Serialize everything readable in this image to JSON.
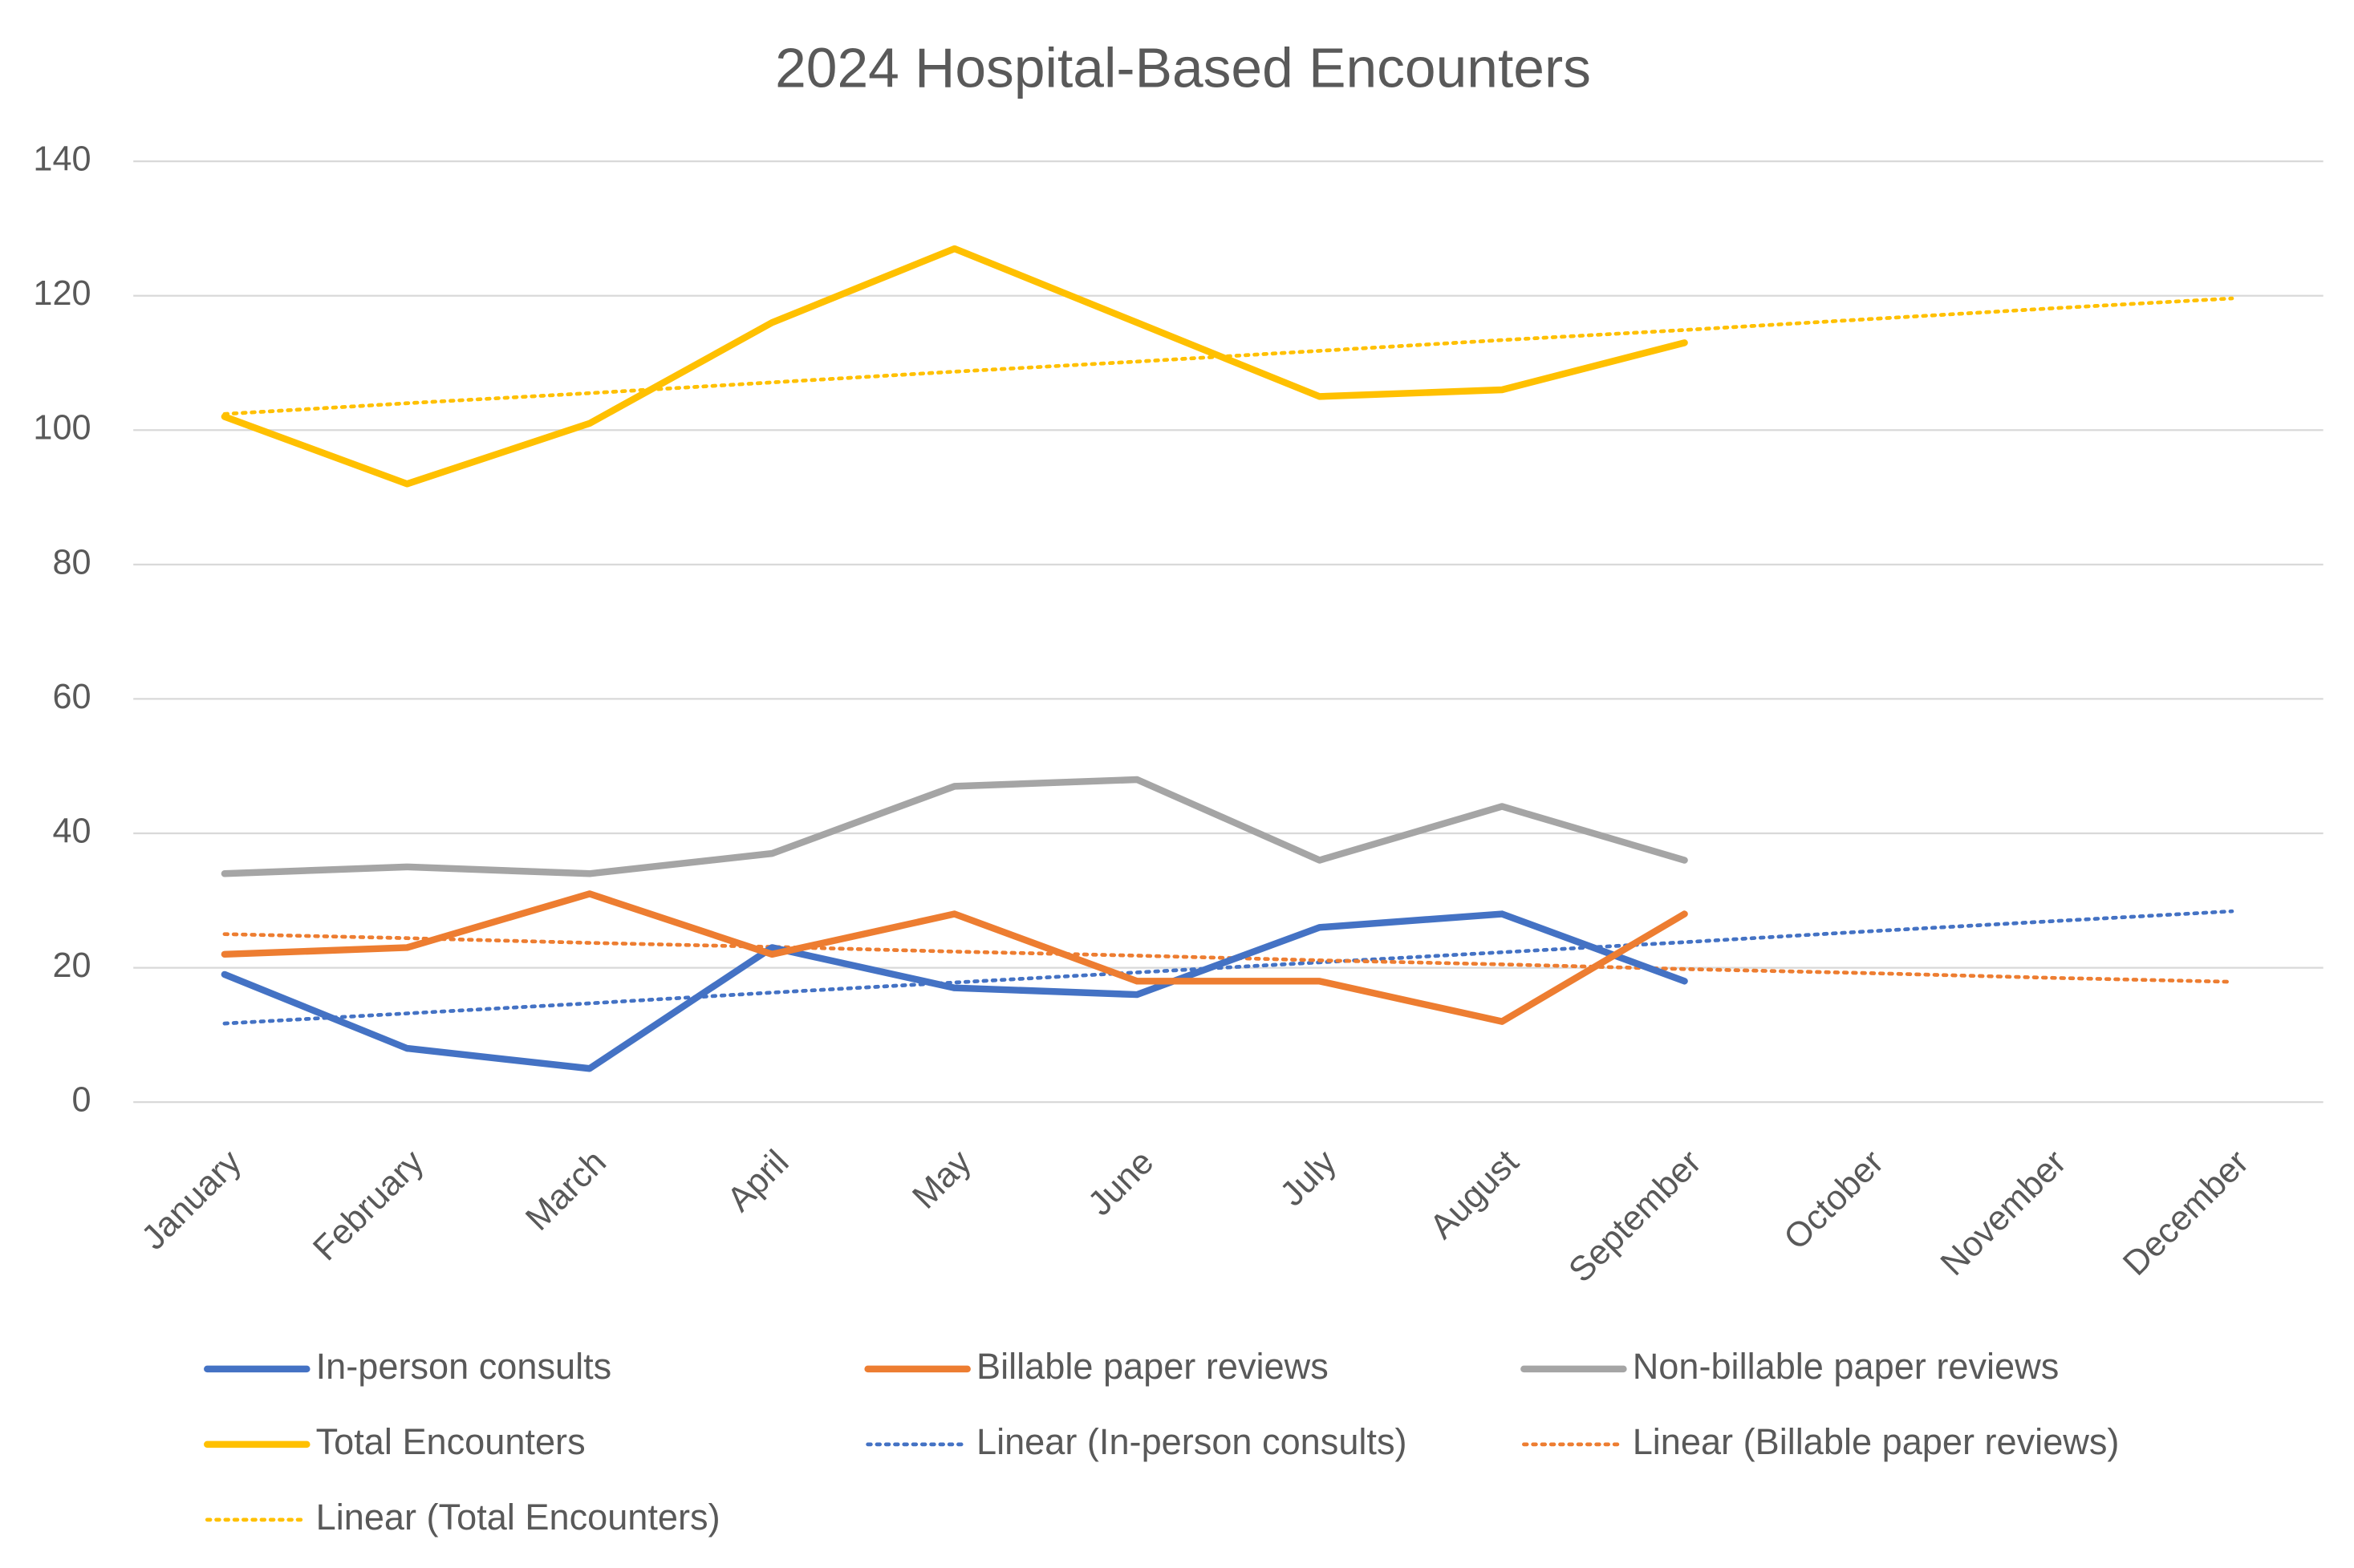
{
  "chart_data": {
    "type": "line",
    "title": "2024 Hospital-Based Encounters",
    "categories": [
      "January",
      "February",
      "March",
      "April",
      "May",
      "June",
      "July",
      "August",
      "September",
      "October",
      "November",
      "December"
    ],
    "ylim": [
      0,
      140
    ],
    "yticks": [
      0,
      20,
      40,
      60,
      80,
      100,
      120,
      140
    ],
    "grid": true,
    "legend": "bottom",
    "series": [
      {
        "name": "In-person consults",
        "color": "#4472c4",
        "dash": "solid",
        "values": [
          19,
          8,
          5,
          23,
          17,
          16,
          26,
          28,
          18,
          null,
          null,
          null
        ]
      },
      {
        "name": "Billable paper reviews",
        "color": "#ed7d31",
        "dash": "solid",
        "values": [
          22,
          23,
          31,
          22,
          28,
          18,
          18,
          12,
          28,
          null,
          null,
          null
        ]
      },
      {
        "name": "Non-billable paper reviews",
        "color": "#a5a5a5",
        "dash": "solid",
        "values": [
          34,
          35,
          34,
          37,
          47,
          48,
          36,
          44,
          36,
          null,
          null,
          null
        ]
      },
      {
        "name": "Total Encounters",
        "color": "#ffc000",
        "dash": "solid",
        "values": [
          102,
          92,
          101,
          116,
          127,
          116,
          105,
          106,
          113,
          null,
          null,
          null
        ]
      },
      {
        "name": "Linear (In-person consults)",
        "color": "#4472c4",
        "dash": "dotted",
        "values": [
          11.7,
          13.2,
          14.7,
          16.3,
          17.8,
          19.3,
          20.8,
          22.3,
          23.8,
          25.4,
          26.9,
          28.4
        ]
      },
      {
        "name": "Linear (Billable paper reviews)",
        "color": "#ed7d31",
        "dash": "dotted",
        "values": [
          25.0,
          24.4,
          23.7,
          23.1,
          22.4,
          21.8,
          21.1,
          20.5,
          19.8,
          19.2,
          18.5,
          17.9
        ]
      },
      {
        "name": "Linear (Total Encounters)",
        "color": "#ffc000",
        "dash": "dotted",
        "values": [
          102.4,
          104.0,
          105.5,
          107.1,
          108.7,
          110.2,
          111.8,
          113.4,
          114.9,
          116.5,
          118.1,
          119.6
        ]
      }
    ]
  }
}
